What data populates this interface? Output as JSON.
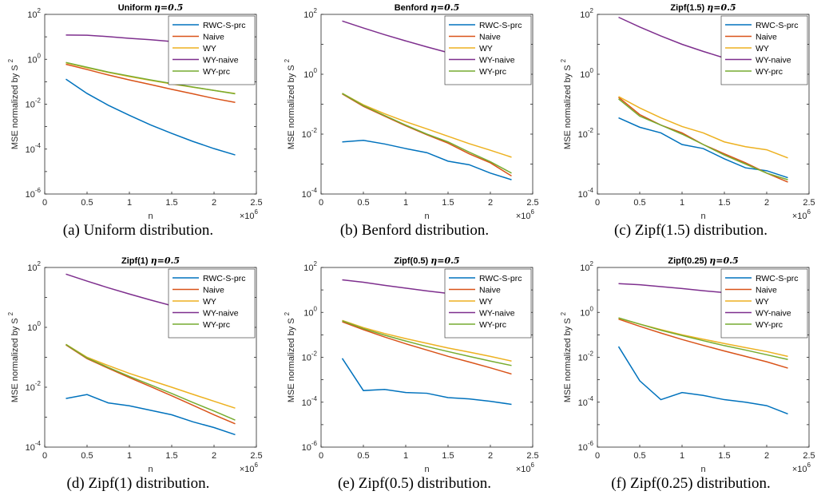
{
  "chart_data": [
    {
      "type": "line",
      "title": "Uniform",
      "title_eta": "η=0.5",
      "caption": "(a) Uniform distribution.",
      "xlabel": "n",
      "ylabel": "MSE normalized by S",
      "ylabel_sup": "2",
      "x_multiplier": "×10",
      "x_multiplier_exp": "6",
      "x": [
        0.25,
        0.5,
        0.75,
        1,
        1.25,
        1.5,
        1.75,
        2,
        2.25
      ],
      "x_ticks": [
        "0",
        "0.5",
        "1",
        "1.5",
        "2",
        "2.5"
      ],
      "xlim": [
        0,
        2.5
      ],
      "ylim_exp": [
        -6,
        2
      ],
      "y_ticks": [
        "10",
        "10",
        "10",
        "10",
        "10"
      ],
      "y_tick_exps": [
        "-6",
        "-4",
        "-2",
        "0",
        "2"
      ],
      "y_scale": "log",
      "legend": "top-right",
      "series": [
        {
          "name": "RWC-S-prc",
          "color": "#0072BD",
          "values": [
            0.13,
            0.03,
            0.009,
            0.0032,
            0.0012,
            0.0005,
            0.00022,
            0.000105,
            5.5e-05
          ]
        },
        {
          "name": "Naive",
          "color": "#D95319",
          "values": [
            0.6,
            0.35,
            0.2,
            0.12,
            0.075,
            0.046,
            0.029,
            0.018,
            0.012
          ]
        },
        {
          "name": "WY",
          "color": "#EDB120",
          "values": [
            0.7,
            0.42,
            0.26,
            0.17,
            0.115,
            0.08,
            0.057,
            0.041,
            0.03
          ]
        },
        {
          "name": "WY-naive",
          "color": "#7E2F8E",
          "values": [
            12,
            11.8,
            10.2,
            8.6,
            7.4,
            6.2,
            5.3,
            4.5,
            4.0
          ]
        },
        {
          "name": "WY-prc",
          "color": "#77AC30",
          "values": [
            0.72,
            0.44,
            0.27,
            0.18,
            0.12,
            0.083,
            0.058,
            0.041,
            0.029
          ]
        }
      ]
    },
    {
      "type": "line",
      "title": "Benford",
      "title_eta": "η=0.5",
      "caption": "(b) Benford distribution.",
      "xlabel": "n",
      "ylabel": "MSE normalized by S",
      "ylabel_sup": "2",
      "x_multiplier": "×10",
      "x_multiplier_exp": "6",
      "x": [
        0.25,
        0.5,
        0.75,
        1,
        1.25,
        1.5,
        1.75,
        2,
        2.25
      ],
      "x_ticks": [
        "0",
        "0.5",
        "1",
        "1.5",
        "2",
        "2.5"
      ],
      "xlim": [
        0,
        2.5
      ],
      "ylim_exp": [
        -4,
        2
      ],
      "y_ticks": [
        "10",
        "10",
        "10",
        "10"
      ],
      "y_tick_exps": [
        "-4",
        "-2",
        "0",
        "2"
      ],
      "y_scale": "log",
      "legend": "top-right",
      "series": [
        {
          "name": "RWC-S-prc",
          "color": "#0072BD",
          "values": [
            0.0055,
            0.0062,
            0.0047,
            0.0033,
            0.0024,
            0.00125,
            0.00095,
            0.0005,
            0.0003
          ]
        },
        {
          "name": "Naive",
          "color": "#D95319",
          "values": [
            0.22,
            0.085,
            0.04,
            0.019,
            0.0095,
            0.005,
            0.0022,
            0.0011,
            0.0004
          ]
        },
        {
          "name": "WY",
          "color": "#EDB120",
          "values": [
            0.23,
            0.095,
            0.048,
            0.026,
            0.015,
            0.0085,
            0.0048,
            0.0029,
            0.0017
          ]
        },
        {
          "name": "WY-naive",
          "color": "#7E2F8E",
          "values": [
            60,
            35,
            21,
            13,
            8.2,
            5.3,
            3.5,
            2.5,
            2.0
          ]
        },
        {
          "name": "WY-prc",
          "color": "#77AC30",
          "values": [
            0.23,
            0.09,
            0.042,
            0.02,
            0.01,
            0.0055,
            0.0025,
            0.0012,
            0.0005
          ]
        }
      ]
    },
    {
      "type": "line",
      "title": "Zipf(1.5)",
      "title_eta": "η=0.5",
      "caption": "(c) Zipf(1.5) distribution.",
      "xlabel": "n",
      "ylabel": "MSE normalized by S",
      "ylabel_sup": "2",
      "x_multiplier": "×10",
      "x_multiplier_exp": "6",
      "x": [
        0.25,
        0.5,
        0.75,
        1,
        1.25,
        1.5,
        1.75,
        2,
        2.25
      ],
      "x_ticks": [
        "0",
        "0.5",
        "1",
        "1.5",
        "2",
        "2.5"
      ],
      "xlim": [
        0,
        2.5
      ],
      "ylim_exp": [
        -4,
        2
      ],
      "y_ticks": [
        "10",
        "10",
        "10",
        "10"
      ],
      "y_tick_exps": [
        "-4",
        "-2",
        "0",
        "2"
      ],
      "y_scale": "log",
      "legend": "top-right",
      "series": [
        {
          "name": "RWC-S-prc",
          "color": "#0072BD",
          "values": [
            0.035,
            0.017,
            0.011,
            0.0045,
            0.0033,
            0.0015,
            0.00075,
            0.0006,
            0.00035
          ]
        },
        {
          "name": "Naive",
          "color": "#D95319",
          "values": [
            0.17,
            0.045,
            0.02,
            0.011,
            0.0045,
            0.0022,
            0.0011,
            0.0005,
            0.00025
          ]
        },
        {
          "name": "WY",
          "color": "#EDB120",
          "values": [
            0.18,
            0.075,
            0.035,
            0.018,
            0.011,
            0.0055,
            0.0038,
            0.003,
            0.0016
          ]
        },
        {
          "name": "WY-naive",
          "color": "#7E2F8E",
          "values": [
            80,
            38,
            19,
            10,
            5.8,
            3.5,
            2.2,
            1.5,
            1.1
          ]
        },
        {
          "name": "WY-prc",
          "color": "#77AC30",
          "values": [
            0.15,
            0.04,
            0.02,
            0.01,
            0.0045,
            0.002,
            0.001,
            0.0005,
            0.0003
          ]
        }
      ]
    },
    {
      "type": "line",
      "title": "Zipf(1)",
      "title_eta": "η=0.5",
      "caption": "(d) Zipf(1) distribution.",
      "xlabel": "n",
      "ylabel": "MSE normalized by S",
      "ylabel_sup": "2",
      "x_multiplier": "×10",
      "x_multiplier_exp": "6",
      "x": [
        0.25,
        0.5,
        0.75,
        1,
        1.25,
        1.5,
        1.75,
        2,
        2.25
      ],
      "x_ticks": [
        "0",
        "0.5",
        "1",
        "1.5",
        "2",
        "2.5"
      ],
      "xlim": [
        0,
        2.5
      ],
      "ylim_exp": [
        -4,
        2
      ],
      "y_ticks": [
        "10",
        "10",
        "10",
        "10"
      ],
      "y_tick_exps": [
        "-4",
        "-2",
        "0",
        "2"
      ],
      "y_scale": "log",
      "legend": "top-right",
      "series": [
        {
          "name": "RWC-S-prc",
          "color": "#0072BD",
          "values": [
            0.0042,
            0.0057,
            0.003,
            0.0024,
            0.0017,
            0.0012,
            0.0007,
            0.00045,
            0.00026
          ]
        },
        {
          "name": "Naive",
          "color": "#D95319",
          "values": [
            0.26,
            0.09,
            0.043,
            0.021,
            0.0105,
            0.0052,
            0.0025,
            0.0012,
            0.0006
          ]
        },
        {
          "name": "WY",
          "color": "#EDB120",
          "values": [
            0.27,
            0.1,
            0.053,
            0.029,
            0.017,
            0.01,
            0.0058,
            0.0034,
            0.002
          ]
        },
        {
          "name": "WY-naive",
          "color": "#7E2F8E",
          "values": [
            60,
            35,
            21,
            13,
            8.2,
            5.3,
            3.5,
            2.5,
            2.0
          ]
        },
        {
          "name": "WY-prc",
          "color": "#77AC30",
          "values": [
            0.27,
            0.095,
            0.046,
            0.023,
            0.012,
            0.0062,
            0.0031,
            0.0016,
            0.0008
          ]
        }
      ]
    },
    {
      "type": "line",
      "title": "Zipf(0.5)",
      "title_eta": "η=0.5",
      "caption": "(e) Zipf(0.5) distribution.",
      "xlabel": "n",
      "ylabel": "MSE normalized by S",
      "ylabel_sup": "2",
      "x_multiplier": "×10",
      "x_multiplier_exp": "6",
      "x": [
        0.25,
        0.5,
        0.75,
        1,
        1.25,
        1.5,
        1.75,
        2,
        2.25
      ],
      "x_ticks": [
        "0",
        "0.5",
        "1",
        "1.5",
        "2",
        "2.5"
      ],
      "xlim": [
        0,
        2.5
      ],
      "ylim_exp": [
        -6,
        2
      ],
      "y_ticks": [
        "10",
        "10",
        "10",
        "10",
        "10"
      ],
      "y_tick_exps": [
        "-6",
        "-4",
        "-2",
        "0",
        "2"
      ],
      "y_scale": "log",
      "legend": "top-right",
      "series": [
        {
          "name": "RWC-S-prc",
          "color": "#0072BD",
          "values": [
            0.009,
            0.00033,
            0.00037,
            0.00027,
            0.00025,
            0.00016,
            0.00014,
            0.00011,
            8e-05
          ]
        },
        {
          "name": "Naive",
          "color": "#D95319",
          "values": [
            0.38,
            0.17,
            0.08,
            0.04,
            0.021,
            0.011,
            0.0062,
            0.0034,
            0.0018
          ]
        },
        {
          "name": "WY",
          "color": "#EDB120",
          "values": [
            0.44,
            0.21,
            0.115,
            0.068,
            0.042,
            0.026,
            0.017,
            0.011,
            0.0068
          ]
        },
        {
          "name": "WY-naive",
          "color": "#7E2F8E",
          "values": [
            28,
            22,
            16,
            12,
            9.0,
            7.0,
            5.5,
            4.3,
            3.5
          ]
        },
        {
          "name": "WY-prc",
          "color": "#77AC30",
          "values": [
            0.42,
            0.19,
            0.097,
            0.053,
            0.03,
            0.018,
            0.011,
            0.0068,
            0.0043
          ]
        }
      ]
    },
    {
      "type": "line",
      "title": "Zipf(0.25)",
      "title_eta": "η=0.5",
      "caption": "(f) Zipf(0.25) distribution.",
      "xlabel": "n",
      "ylabel": "MSE normalized by S",
      "ylabel_sup": "2",
      "x_multiplier": "×10",
      "x_multiplier_exp": "6",
      "x": [
        0.25,
        0.5,
        0.75,
        1,
        1.25,
        1.5,
        1.75,
        2,
        2.25
      ],
      "x_ticks": [
        "0",
        "0.5",
        "1",
        "1.5",
        "2",
        "2.5"
      ],
      "xlim": [
        0,
        2.5
      ],
      "ylim_exp": [
        -6,
        2
      ],
      "y_ticks": [
        "10",
        "10",
        "10",
        "10",
        "10"
      ],
      "y_tick_exps": [
        "-6",
        "-4",
        "-2",
        "0",
        "2"
      ],
      "y_scale": "log",
      "legend": "top-right",
      "series": [
        {
          "name": "RWC-S-prc",
          "color": "#0072BD",
          "values": [
            0.03,
            0.0009,
            0.00013,
            0.00027,
            0.0002,
            0.00013,
            0.0001,
            7e-05,
            3e-05
          ]
        },
        {
          "name": "Naive",
          "color": "#D95319",
          "values": [
            0.5,
            0.24,
            0.12,
            0.062,
            0.034,
            0.019,
            0.011,
            0.0063,
            0.0033
          ]
        },
        {
          "name": "WY",
          "color": "#EDB120",
          "values": [
            0.55,
            0.3,
            0.17,
            0.1,
            0.064,
            0.041,
            0.027,
            0.018,
            0.011
          ]
        },
        {
          "name": "WY-naive",
          "color": "#7E2F8E",
          "values": [
            19,
            17,
            14,
            11.5,
            9.2,
            7.6,
            6.2,
            5.1,
            4.3
          ]
        },
        {
          "name": "WY-prc",
          "color": "#77AC30",
          "values": [
            0.57,
            0.3,
            0.16,
            0.093,
            0.055,
            0.033,
            0.021,
            0.013,
            0.008
          ]
        }
      ]
    }
  ]
}
